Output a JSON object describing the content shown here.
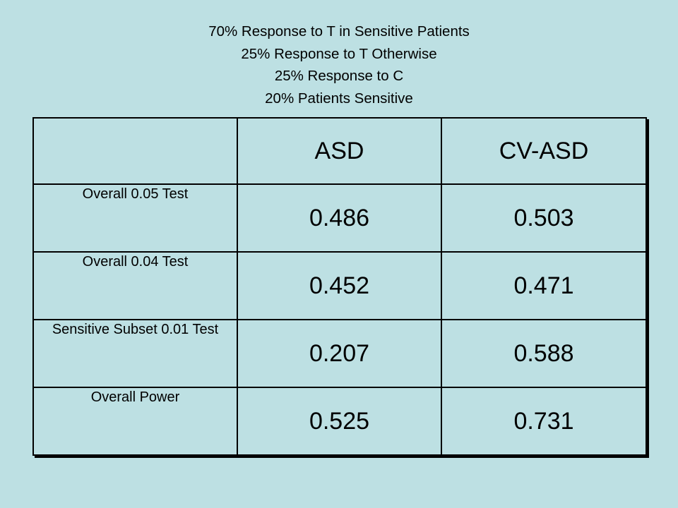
{
  "header": {
    "lines": [
      "70% Response to T in Sensitive Patients",
      "25% Response to T Otherwise",
      "25% Response to C",
      "20% Patients Sensitive"
    ]
  },
  "table": {
    "columns": [
      "",
      "ASD",
      "CV-ASD"
    ],
    "rows": [
      {
        "label": "Overall 0.05 Test",
        "values": [
          "0.486",
          "0.503"
        ]
      },
      {
        "label": "Overall 0.04 Test",
        "values": [
          "0.452",
          "0.471"
        ]
      },
      {
        "label": "Sensitive Subset 0.01 Test",
        "values": [
          "0.207",
          "0.588"
        ]
      },
      {
        "label": "Overall Power",
        "values": [
          "0.525",
          "0.731"
        ]
      }
    ]
  },
  "colors": {
    "background": "#bde0e3",
    "border": "#000000",
    "text": "#000000"
  }
}
